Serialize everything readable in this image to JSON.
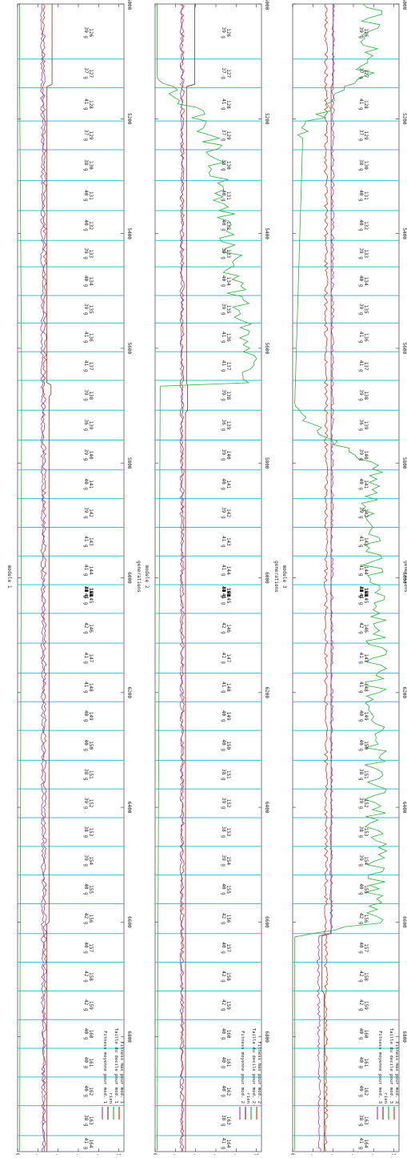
{
  "chart_data": [
    {
      "type": "line",
      "title": "modele 1",
      "xlabel": "generations",
      "xlim": [
        5000,
        7000
      ],
      "ylim": [
        0,
        1.05
      ],
      "x_ticks": [
        "5000",
        "5200",
        "5400",
        "5600",
        "5800",
        "6000",
        "6200",
        "6400",
        "6600",
        "6800"
      ],
      "y_ticks": [
        "0",
        ".2",
        ".4",
        ".6",
        ".8",
        "1"
      ],
      "legend": [
        "Fitness max pour mod. 1",
        "Taille du decile pour mod. 1",
        "rien",
        "Fitness moyenne pour mod. 1"
      ],
      "legend_position": "top-right",
      "cycle_boundaries": [
        5096,
        5146,
        5204,
        5254,
        5308,
        5360,
        5412,
        5458,
        5508,
        5556,
        5606,
        5656,
        5708,
        5760,
        5812,
        5862,
        5912,
        5962,
        6012,
        6062,
        6114,
        6166,
        6216,
        6266,
        6318,
        6368,
        6418,
        6468,
        6518,
        6568,
        6620,
        6670,
        6720,
        6770,
        6820,
        6870,
        6920,
        6972
      ],
      "annotations": [
        {
          "gen": "126",
          "count": "39"
        },
        {
          "gen": "127",
          "count": "37"
        },
        {
          "gen": "128",
          "count": "41"
        },
        {
          "gen": "129",
          "count": "37"
        },
        {
          "gen": "130",
          "count": "38"
        },
        {
          "gen": "131",
          "count": "40"
        },
        {
          "gen": "132",
          "count": "40"
        },
        {
          "gen": "133",
          "count": "39"
        },
        {
          "gen": "134",
          "count": "40"
        },
        {
          "gen": "135",
          "count": "39"
        },
        {
          "gen": "136",
          "count": "41"
        },
        {
          "gen": "137",
          "count": "41"
        },
        {
          "gen": "138",
          "count": "39"
        },
        {
          "gen": "139",
          "count": "36"
        },
        {
          "gen": "140",
          "count": "39"
        },
        {
          "gen": "141",
          "count": "40"
        },
        {
          "gen": "142",
          "count": "39"
        },
        {
          "gen": "143",
          "count": "41"
        },
        {
          "gen": "144",
          "count": "41"
        },
        {
          "gen": "145",
          "count": "41"
        },
        {
          "gen": "146",
          "count": "42"
        },
        {
          "gen": "147",
          "count": "41"
        },
        {
          "gen": "148",
          "count": "41"
        },
        {
          "gen": "149",
          "count": "40"
        },
        {
          "gen": "150",
          "count": "40"
        },
        {
          "gen": "151",
          "count": "38"
        },
        {
          "gen": "152",
          "count": "39"
        },
        {
          "gen": "153",
          "count": "38"
        },
        {
          "gen": "154",
          "count": "39"
        },
        {
          "gen": "155",
          "count": "40"
        },
        {
          "gen": "156",
          "count": "42"
        },
        {
          "gen": "157",
          "count": "40"
        },
        {
          "gen": "158",
          "count": "42"
        },
        {
          "gen": "159",
          "count": "42"
        },
        {
          "gen": "160",
          "count": "40"
        },
        {
          "gen": "161",
          "count": "40"
        },
        {
          "gen": "162",
          "count": "40"
        },
        {
          "gen": "163",
          "count": "38"
        },
        {
          "gen": "164",
          "count": "41"
        },
        {
          "gen": "165",
          "count": "37"
        },
        {
          "gen": "166",
          "count": "40"
        },
        {
          "gen": "167",
          "count": "42"
        },
        {
          "gen": "168",
          "count": "41"
        },
        {
          "gen": "169",
          "count": "44"
        },
        {
          "gen": "170",
          "count": "43"
        },
        {
          "gen": "171",
          "count": "41"
        },
        {
          "gen": "172",
          "count": "44"
        },
        {
          "gen": "173",
          "count": "44"
        },
        {
          "gen": "174",
          "count": "38"
        }
      ],
      "series_trend": [
        {
          "color": "#e2341d",
          "points": [
            [
              5000,
              0.26
            ],
            [
              5600,
              0.27
            ],
            [
              5700,
              0.26
            ],
            [
              6600,
              0.27
            ],
            [
              7000,
              0.26
            ]
          ]
        },
        {
          "color": "#8a3324",
          "points": [
            [
              5000,
              0.34
            ],
            [
              5140,
              0.34
            ],
            [
              5141,
              0.29
            ],
            [
              5660,
              0.29
            ],
            [
              5661,
              0.33
            ],
            [
              5680,
              0.33
            ],
            [
              5681,
              0.31
            ],
            [
              6600,
              0.31
            ],
            [
              6601,
              0.29
            ],
            [
              7000,
              0.29
            ]
          ]
        },
        {
          "color": "#2ab53a",
          "points": [
            [
              5000,
              0.02
            ],
            [
              5140,
              0.02
            ],
            [
              5660,
              0.04
            ],
            [
              7000,
              0.02
            ]
          ]
        },
        {
          "color": "#9a45c9",
          "points": [
            [
              5000,
              0.24
            ],
            [
              7000,
              0.25
            ]
          ]
        }
      ]
    },
    {
      "type": "line",
      "title": "modele 2",
      "xlabel": "generations",
      "xlim": [
        5000,
        7000
      ],
      "ylim": [
        0,
        1.05
      ],
      "x_ticks": [
        "5000",
        "5200",
        "5400",
        "5600",
        "5800",
        "6000",
        "6200",
        "6400",
        "6600",
        "6800"
      ],
      "y_ticks": [
        "0",
        ".2",
        ".4",
        ".6",
        ".8",
        "1"
      ],
      "legend": [
        "Fitness max pour mod. 2",
        "Taille du decile pour mod. 2",
        "rien",
        "Fitness moyenne pour mod. 2"
      ],
      "legend_position": "top-right",
      "cycle_boundaries": [
        5096,
        5146,
        5204,
        5254,
        5308,
        5360,
        5412,
        5458,
        5508,
        5556,
        5606,
        5656,
        5708,
        5760,
        5812,
        5862,
        5912,
        5962,
        6012,
        6062,
        6114,
        6166,
        6216,
        6266,
        6318,
        6368,
        6418,
        6468,
        6518,
        6568,
        6620,
        6670,
        6720,
        6770,
        6820,
        6870,
        6920,
        6972
      ],
      "annotations": [
        {
          "gen": "126",
          "count": "39"
        },
        {
          "gen": "127",
          "count": "37"
        },
        {
          "gen": "128",
          "count": "41"
        },
        {
          "gen": "129",
          "count": "37"
        },
        {
          "gen": "130",
          "count": "38"
        },
        {
          "gen": "131",
          "count": "40"
        },
        {
          "gen": "132",
          "count": "40"
        },
        {
          "gen": "133",
          "count": "39"
        },
        {
          "gen": "134",
          "count": "40"
        },
        {
          "gen": "135",
          "count": "39"
        },
        {
          "gen": "136",
          "count": "41"
        },
        {
          "gen": "137",
          "count": "41"
        },
        {
          "gen": "138",
          "count": "39"
        },
        {
          "gen": "139",
          "count": "36"
        },
        {
          "gen": "140",
          "count": "39"
        },
        {
          "gen": "141",
          "count": "40"
        },
        {
          "gen": "142",
          "count": "39"
        },
        {
          "gen": "143",
          "count": "41"
        },
        {
          "gen": "144",
          "count": "41"
        },
        {
          "gen": "145",
          "count": "41"
        },
        {
          "gen": "146",
          "count": "42"
        },
        {
          "gen": "147",
          "count": "41"
        },
        {
          "gen": "148",
          "count": "41"
        },
        {
          "gen": "149",
          "count": "40"
        },
        {
          "gen": "150",
          "count": "40"
        },
        {
          "gen": "151",
          "count": "38"
        },
        {
          "gen": "152",
          "count": "39"
        },
        {
          "gen": "153",
          "count": "38"
        },
        {
          "gen": "154",
          "count": "39"
        },
        {
          "gen": "155",
          "count": "40"
        },
        {
          "gen": "156",
          "count": "42"
        },
        {
          "gen": "157",
          "count": "40"
        },
        {
          "gen": "158",
          "count": "42"
        },
        {
          "gen": "159",
          "count": "42"
        },
        {
          "gen": "160",
          "count": "40"
        },
        {
          "gen": "161",
          "count": "40"
        },
        {
          "gen": "162",
          "count": "40"
        },
        {
          "gen": "163",
          "count": "38"
        },
        {
          "gen": "164",
          "count": "41"
        },
        {
          "gen": "165",
          "count": "37"
        },
        {
          "gen": "166",
          "count": "40"
        },
        {
          "gen": "167",
          "count": "42"
        },
        {
          "gen": "168",
          "count": "41"
        },
        {
          "gen": "169",
          "count": "44"
        },
        {
          "gen": "170",
          "count": "43"
        },
        {
          "gen": "171",
          "count": "41"
        },
        {
          "gen": "172",
          "count": "44"
        },
        {
          "gen": "173",
          "count": "44"
        },
        {
          "gen": "174",
          "count": "38"
        }
      ],
      "series_trend": [
        {
          "color": "#e2341d",
          "points": [
            [
              5000,
              0.27
            ],
            [
              7000,
              0.27
            ]
          ]
        },
        {
          "color": "#8a3324",
          "points": [
            [
              5000,
              0.39
            ],
            [
              5140,
              0.39
            ],
            [
              5141,
              0.31
            ],
            [
              5660,
              0.31
            ],
            [
              5661,
              0.32
            ],
            [
              5710,
              0.32
            ],
            [
              5711,
              0.3
            ],
            [
              7000,
              0.3
            ]
          ]
        },
        {
          "color": "#2ab53a",
          "points": [
            [
              5000,
              0.02
            ],
            [
              5130,
              0.02
            ],
            [
              5180,
              0.36
            ],
            [
              5250,
              0.58
            ],
            [
              5400,
              0.72
            ],
            [
              5550,
              0.85
            ],
            [
              5660,
              0.95
            ],
            [
              5662,
              0.05
            ],
            [
              7000,
              0.02
            ]
          ]
        },
        {
          "color": "#9a45c9",
          "points": [
            [
              5000,
              0.26
            ],
            [
              7000,
              0.26
            ]
          ]
        }
      ]
    },
    {
      "type": "line",
      "title": "modele 3",
      "xlabel": "generations",
      "xlim": [
        5000,
        7000
      ],
      "ylim": [
        0,
        1.05
      ],
      "x_ticks": [
        "5000",
        "5200",
        "5400",
        "5600",
        "5800",
        "6000",
        "6200",
        "6400",
        "6600",
        "6800"
      ],
      "y_ticks": [
        "0",
        ".2",
        ".4",
        ".6",
        ".8",
        "1"
      ],
      "legend": [
        "Fitness max pour mod. 3",
        "Taille du decile pour mod. 3",
        "rien",
        "Fitness moyenne pour mod. 3"
      ],
      "legend_position": "top-right",
      "cycle_boundaries": [
        5096,
        5146,
        5204,
        5254,
        5308,
        5360,
        5412,
        5458,
        5508,
        5556,
        5606,
        5656,
        5708,
        5760,
        5812,
        5862,
        5912,
        5962,
        6012,
        6062,
        6114,
        6166,
        6216,
        6266,
        6318,
        6368,
        6418,
        6468,
        6518,
        6568,
        6620,
        6670,
        6720,
        6770,
        6820,
        6870,
        6920,
        6972
      ],
      "annotations": [
        {
          "gen": "126",
          "count": "39"
        },
        {
          "gen": "127",
          "count": "37"
        },
        {
          "gen": "128",
          "count": "41"
        },
        {
          "gen": "129",
          "count": "37"
        },
        {
          "gen": "130",
          "count": "38"
        },
        {
          "gen": "131",
          "count": "40"
        },
        {
          "gen": "132",
          "count": "40"
        },
        {
          "gen": "133",
          "count": "39"
        },
        {
          "gen": "134",
          "count": "40"
        },
        {
          "gen": "135",
          "count": "39"
        },
        {
          "gen": "136",
          "count": "41"
        },
        {
          "gen": "137",
          "count": "41"
        },
        {
          "gen": "138",
          "count": "39"
        },
        {
          "gen": "139",
          "count": "36"
        },
        {
          "gen": "140",
          "count": "39"
        },
        {
          "gen": "141",
          "count": "40"
        },
        {
          "gen": "142",
          "count": "39"
        },
        {
          "gen": "143",
          "count": "41"
        },
        {
          "gen": "144",
          "count": "41"
        },
        {
          "gen": "145",
          "count": "41"
        },
        {
          "gen": "146",
          "count": "42"
        },
        {
          "gen": "147",
          "count": "41"
        },
        {
          "gen": "148",
          "count": "41"
        },
        {
          "gen": "149",
          "count": "40"
        },
        {
          "gen": "150",
          "count": "40"
        },
        {
          "gen": "151",
          "count": "38"
        },
        {
          "gen": "152",
          "count": "39"
        },
        {
          "gen": "153",
          "count": "38"
        },
        {
          "gen": "154",
          "count": "39"
        },
        {
          "gen": "155",
          "count": "40"
        },
        {
          "gen": "156",
          "count": "42"
        },
        {
          "gen": "157",
          "count": "40"
        },
        {
          "gen": "158",
          "count": "42"
        },
        {
          "gen": "159",
          "count": "42"
        },
        {
          "gen": "160",
          "count": "40"
        },
        {
          "gen": "161",
          "count": "40"
        },
        {
          "gen": "162",
          "count": "40"
        },
        {
          "gen": "163",
          "count": "38"
        },
        {
          "gen": "164",
          "count": "41"
        },
        {
          "gen": "165",
          "count": "37"
        },
        {
          "gen": "166",
          "count": "40"
        },
        {
          "gen": "167",
          "count": "42"
        },
        {
          "gen": "168",
          "count": "41"
        },
        {
          "gen": "169",
          "count": "44"
        },
        {
          "gen": "170",
          "count": "43"
        },
        {
          "gen": "171",
          "count": "41"
        },
        {
          "gen": "172",
          "count": "44"
        },
        {
          "gen": "173",
          "count": "44"
        },
        {
          "gen": "174",
          "count": "38"
        }
      ],
      "series_trend": [
        {
          "color": "#e2341d",
          "points": [
            [
              5000,
              0.33
            ],
            [
              7000,
              0.33
            ]
          ]
        },
        {
          "color": "#8a3324",
          "points": [
            [
              5000,
              0.4
            ],
            [
              5140,
              0.4
            ],
            [
              5141,
              0.38
            ],
            [
              6620,
              0.38
            ],
            [
              6621,
              0.29
            ],
            [
              6720,
              0.29
            ],
            [
              6721,
              0.31
            ],
            [
              7000,
              0.31
            ]
          ]
        },
        {
          "color": "#2ab53a",
          "points": [
            [
              5000,
              0.8
            ],
            [
              5130,
              0.7
            ],
            [
              5180,
              0.3
            ],
            [
              5230,
              0.1
            ],
            [
              5700,
              0.02
            ],
            [
              5760,
              0.4
            ],
            [
              5800,
              0.78
            ],
            [
              6100,
              0.82
            ],
            [
              6600,
              0.82
            ],
            [
              6620,
              0.3
            ],
            [
              6625,
              0.02
            ],
            [
              7000,
              0.02
            ]
          ]
        },
        {
          "color": "#9a45c9",
          "points": [
            [
              5000,
              0.4
            ],
            [
              6620,
              0.38
            ],
            [
              6621,
              0.25
            ],
            [
              7000,
              0.27
            ]
          ]
        }
      ]
    }
  ],
  "colors": {
    "grid_cyan": "#2fc6cf",
    "series": [
      "#e2341d",
      "#2ab53a",
      "#8a3324",
      "#9a45c9"
    ]
  }
}
